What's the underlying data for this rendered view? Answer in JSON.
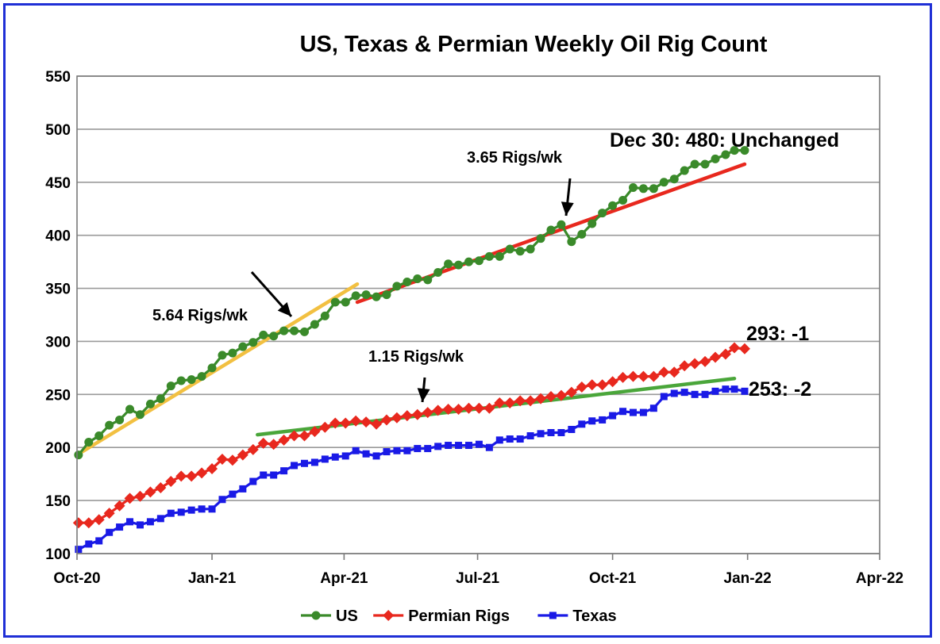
{
  "chart_data": {
    "type": "line",
    "title": "US, Texas & Permian Weekly Oil Rig Count",
    "x_axis": {
      "type": "date",
      "ticks": [
        "2020-10-01",
        "2021-01-01",
        "2021-04-01",
        "2021-07-01",
        "2021-10-01",
        "2022-01-01",
        "2022-04-01"
      ],
      "tick_labels": [
        "Oct-20",
        "Jan-21",
        "Apr-21",
        "Jul-21",
        "Oct-21",
        "Jan-22",
        "Apr-22"
      ],
      "range": [
        "2020-10-01",
        "2022-04-01"
      ]
    },
    "y_axis": {
      "range": [
        100,
        550
      ],
      "ticks": [
        100,
        150,
        200,
        250,
        300,
        350,
        400,
        450,
        500,
        550
      ]
    },
    "grid": "horizontal",
    "legend": {
      "position": "bottom"
    },
    "series": [
      {
        "name": "US",
        "color": "#3a8a2a",
        "marker": "circle",
        "x": [
          "2020-10-02",
          "2020-10-09",
          "2020-10-16",
          "2020-10-23",
          "2020-10-30",
          "2020-11-06",
          "2020-11-13",
          "2020-11-20",
          "2020-11-27",
          "2020-12-04",
          "2020-12-11",
          "2020-12-18",
          "2020-12-25",
          "2021-01-01",
          "2021-01-08",
          "2021-01-15",
          "2021-01-22",
          "2021-01-29",
          "2021-02-05",
          "2021-02-12",
          "2021-02-19",
          "2021-02-26",
          "2021-03-05",
          "2021-03-12",
          "2021-03-19",
          "2021-03-26",
          "2021-04-02",
          "2021-04-09",
          "2021-04-16",
          "2021-04-23",
          "2021-04-30",
          "2021-05-07",
          "2021-05-14",
          "2021-05-21",
          "2021-05-28",
          "2021-06-04",
          "2021-06-11",
          "2021-06-18",
          "2021-06-25",
          "2021-07-02",
          "2021-07-09",
          "2021-07-16",
          "2021-07-23",
          "2021-07-30",
          "2021-08-06",
          "2021-08-13",
          "2021-08-20",
          "2021-08-27",
          "2021-09-03",
          "2021-09-10",
          "2021-09-17",
          "2021-09-24",
          "2021-10-01",
          "2021-10-08",
          "2021-10-15",
          "2021-10-22",
          "2021-10-29",
          "2021-11-05",
          "2021-11-12",
          "2021-11-19",
          "2021-11-26",
          "2021-12-03",
          "2021-12-10",
          "2021-12-17",
          "2021-12-23",
          "2021-12-30"
        ],
        "values": [
          193,
          205,
          211,
          221,
          226,
          236,
          231,
          241,
          246,
          258,
          263,
          264,
          267,
          275,
          287,
          289,
          295,
          299,
          306,
          305,
          310,
          310,
          309,
          316,
          324,
          337,
          337,
          343,
          344,
          342,
          344,
          352,
          356,
          359,
          358,
          365,
          373,
          372,
          375,
          376,
          380,
          380,
          387,
          385,
          387,
          397,
          405,
          410,
          394,
          401,
          411,
          421,
          428,
          433,
          445,
          444,
          444,
          450,
          453,
          461,
          467,
          467,
          472,
          476,
          480,
          480
        ]
      },
      {
        "name": "Permian Rigs",
        "color": "#e8281e",
        "marker": "diamond",
        "x": [
          "2020-10-02",
          "2020-10-09",
          "2020-10-16",
          "2020-10-23",
          "2020-10-30",
          "2020-11-06",
          "2020-11-13",
          "2020-11-20",
          "2020-11-27",
          "2020-12-04",
          "2020-12-11",
          "2020-12-18",
          "2020-12-25",
          "2021-01-01",
          "2021-01-08",
          "2021-01-15",
          "2021-01-22",
          "2021-01-29",
          "2021-02-05",
          "2021-02-12",
          "2021-02-19",
          "2021-02-26",
          "2021-03-05",
          "2021-03-12",
          "2021-03-19",
          "2021-03-26",
          "2021-04-02",
          "2021-04-09",
          "2021-04-16",
          "2021-04-23",
          "2021-04-30",
          "2021-05-07",
          "2021-05-14",
          "2021-05-21",
          "2021-05-28",
          "2021-06-04",
          "2021-06-11",
          "2021-06-18",
          "2021-06-25",
          "2021-07-02",
          "2021-07-09",
          "2021-07-16",
          "2021-07-23",
          "2021-07-30",
          "2021-08-06",
          "2021-08-13",
          "2021-08-20",
          "2021-08-27",
          "2021-09-03",
          "2021-09-10",
          "2021-09-17",
          "2021-09-24",
          "2021-10-01",
          "2021-10-08",
          "2021-10-15",
          "2021-10-22",
          "2021-10-29",
          "2021-11-05",
          "2021-11-12",
          "2021-11-19",
          "2021-11-26",
          "2021-12-03",
          "2021-12-10",
          "2021-12-17",
          "2021-12-23",
          "2021-12-30"
        ],
        "values": [
          129,
          129,
          132,
          138,
          145,
          152,
          154,
          158,
          162,
          168,
          173,
          173,
          176,
          180,
          189,
          188,
          193,
          198,
          204,
          203,
          207,
          211,
          211,
          215,
          219,
          223,
          223,
          225,
          224,
          222,
          226,
          228,
          230,
          231,
          233,
          235,
          236,
          236,
          237,
          237,
          237,
          242,
          242,
          244,
          244,
          246,
          248,
          249,
          252,
          257,
          259,
          259,
          262,
          266,
          267,
          267,
          267,
          271,
          271,
          277,
          279,
          281,
          285,
          288,
          294,
          293
        ]
      },
      {
        "name": "Texas",
        "color": "#1a1ae6",
        "marker": "square",
        "x": [
          "2020-10-02",
          "2020-10-09",
          "2020-10-16",
          "2020-10-23",
          "2020-10-30",
          "2020-11-06",
          "2020-11-13",
          "2020-11-20",
          "2020-11-27",
          "2020-12-04",
          "2020-12-11",
          "2020-12-18",
          "2020-12-25",
          "2021-01-01",
          "2021-01-08",
          "2021-01-15",
          "2021-01-22",
          "2021-01-29",
          "2021-02-05",
          "2021-02-12",
          "2021-02-19",
          "2021-02-26",
          "2021-03-05",
          "2021-03-12",
          "2021-03-19",
          "2021-03-26",
          "2021-04-02",
          "2021-04-09",
          "2021-04-16",
          "2021-04-23",
          "2021-04-30",
          "2021-05-07",
          "2021-05-14",
          "2021-05-21",
          "2021-05-28",
          "2021-06-04",
          "2021-06-11",
          "2021-06-18",
          "2021-06-25",
          "2021-07-02",
          "2021-07-09",
          "2021-07-16",
          "2021-07-23",
          "2021-07-30",
          "2021-08-06",
          "2021-08-13",
          "2021-08-20",
          "2021-08-27",
          "2021-09-03",
          "2021-09-10",
          "2021-09-17",
          "2021-09-24",
          "2021-10-01",
          "2021-10-08",
          "2021-10-15",
          "2021-10-22",
          "2021-10-29",
          "2021-11-05",
          "2021-11-12",
          "2021-11-19",
          "2021-11-26",
          "2021-12-03",
          "2021-12-10",
          "2021-12-17",
          "2021-12-23",
          "2021-12-30"
        ],
        "values": [
          104,
          109,
          112,
          120,
          125,
          130,
          127,
          130,
          133,
          138,
          139,
          141,
          142,
          142,
          151,
          156,
          161,
          168,
          174,
          174,
          178,
          183,
          185,
          186,
          189,
          191,
          192,
          197,
          194,
          192,
          196,
          197,
          197,
          199,
          199,
          201,
          202,
          202,
          202,
          203,
          200,
          207,
          208,
          208,
          211,
          213,
          214,
          214,
          217,
          222,
          225,
          226,
          230,
          234,
          233,
          233,
          237,
          248,
          251,
          252,
          250,
          250,
          253,
          255,
          255,
          253
        ]
      }
    ],
    "trendlines": [
      {
        "label": "5.64 Rigs/wk",
        "color": "#f2c041",
        "from": {
          "x": "2020-10-01",
          "y": 193
        },
        "to": {
          "x": "2021-04-10",
          "y": 354
        }
      },
      {
        "label": "3.65 Rigs/wk",
        "color": "#e8281e",
        "from": {
          "x": "2021-04-10",
          "y": 337
        },
        "to": {
          "x": "2021-12-30",
          "y": 467
        }
      },
      {
        "label": "1.15 Rigs/wk",
        "color": "#4aa63a",
        "from": {
          "x": "2021-02-01",
          "y": 212
        },
        "to": {
          "x": "2021-12-23",
          "y": 265
        }
      }
    ],
    "annotations": [
      {
        "text": "5.64 Rigs/wk",
        "arrow": true
      },
      {
        "text": "3.65 Rigs/wk",
        "arrow": true
      },
      {
        "text": "1.15 Rigs/wk",
        "arrow": true
      },
      {
        "text": "Dec 30: 480: Unchanged"
      },
      {
        "text": "293: -1"
      },
      {
        "text": "253: -2"
      }
    ]
  }
}
